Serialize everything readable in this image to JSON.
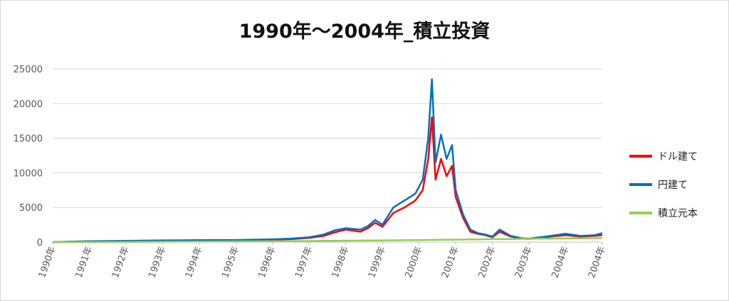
{
  "chart_data": {
    "type": "line",
    "title": "1990年～2004年_積立投資",
    "xlabel": "",
    "ylabel": "",
    "ylim": [
      0,
      25000
    ],
    "yticks": [
      0,
      5000,
      10000,
      15000,
      20000,
      25000
    ],
    "grid": true,
    "legend_position": "right",
    "x_tick_labels": [
      "1990年",
      "1991年",
      "1992年",
      "1993年",
      "1994年",
      "1995年",
      "1996年",
      "1997年",
      "1998年",
      "1999年",
      "2000年",
      "2001年",
      "2002年",
      "2003年",
      "2004年",
      "2004年"
    ],
    "x": [
      1990.0,
      1991.0,
      1992.0,
      1993.0,
      1994.0,
      1995.0,
      1996.0,
      1996.5,
      1997.0,
      1997.4,
      1997.7,
      1998.0,
      1998.4,
      1998.6,
      1998.8,
      1999.0,
      1999.3,
      1999.6,
      1999.9,
      2000.1,
      2000.25,
      2000.35,
      2000.45,
      2000.6,
      2000.75,
      2000.9,
      2001.0,
      2001.2,
      2001.4,
      2001.6,
      2001.8,
      2002.0,
      2002.2,
      2002.5,
      2002.8,
      2003.0,
      2003.3,
      2003.6,
      2004.0,
      2004.4,
      2004.8,
      2005.0
    ],
    "series": [
      {
        "name": "ドル建て",
        "color": "#ff0000",
        "values": [
          0,
          100,
          150,
          200,
          220,
          250,
          350,
          420,
          600,
          900,
          1400,
          1800,
          1500,
          2000,
          2800,
          2200,
          4200,
          5000,
          6000,
          7500,
          12000,
          18000,
          9000,
          12000,
          9500,
          11000,
          6500,
          3500,
          1500,
          1200,
          1000,
          700,
          1500,
          800,
          500,
          450,
          600,
          800,
          1000,
          800,
          900,
          1000
        ]
      },
      {
        "name": "円建て",
        "color": "#0070c0",
        "values": [
          0,
          120,
          180,
          250,
          280,
          300,
          400,
          500,
          700,
          1100,
          1700,
          2000,
          1800,
          2300,
          3200,
          2500,
          5000,
          6000,
          7000,
          9000,
          15000,
          23500,
          11500,
          15500,
          12000,
          14000,
          7500,
          4000,
          1800,
          1300,
          1100,
          800,
          1800,
          900,
          550,
          500,
          700,
          900,
          1200,
          900,
          1000,
          1300
        ]
      },
      {
        "name": "積立元本",
        "color": "#92d050",
        "values": [
          0,
          10,
          30,
          55,
          80,
          105,
          130,
          145,
          155,
          170,
          185,
          200,
          215,
          225,
          235,
          245,
          260,
          275,
          290,
          300,
          305,
          310,
          315,
          325,
          330,
          340,
          345,
          360,
          375,
          390,
          405,
          420,
          430,
          445,
          460,
          470,
          490,
          505,
          525,
          545,
          565,
          580
        ]
      }
    ]
  }
}
